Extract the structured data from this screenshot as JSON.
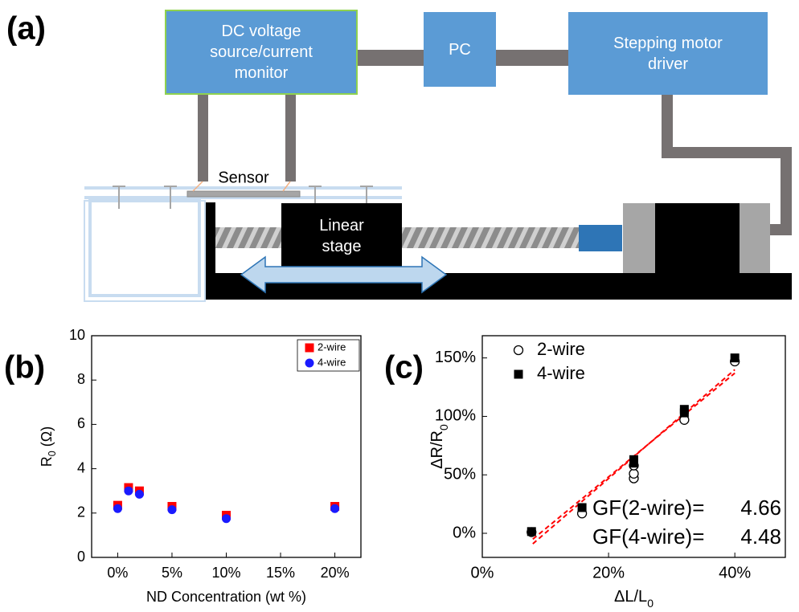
{
  "diagram": {
    "panel_label": "(a)",
    "boxes": [
      "DC voltage source/current monitor",
      "PC",
      "Stepping motor driver"
    ],
    "sensor": "Sensor",
    "stage": "Linear stage"
  },
  "chart_data": [
    {
      "type": "scatter",
      "panel_label": "(b)",
      "x_label": "ND Concentration (wt %)",
      "y_label": {
        "text": "R",
        "sub": "0",
        "rest": "(Ω)"
      },
      "xlim": [
        -2.4,
        22.4
      ],
      "ylim": [
        0,
        10
      ],
      "xticks": [
        {
          "value": 0,
          "label": "0%"
        },
        {
          "value": 5,
          "label": "5%"
        },
        {
          "value": 10,
          "label": "10%"
        },
        {
          "value": 15,
          "label": "15%"
        },
        {
          "value": 20,
          "label": "20%"
        }
      ],
      "yticks": [
        0,
        2,
        4,
        6,
        8,
        10
      ],
      "legend": "upper right",
      "series": [
        {
          "name": "2-wire",
          "color": "#ff0000",
          "marker": "square",
          "x": [
            0,
            1,
            2,
            5,
            10,
            20
          ],
          "values": [
            2.35,
            3.15,
            3.0,
            2.3,
            1.9,
            2.3
          ]
        },
        {
          "name": "4-wire",
          "color": "#1a1aff",
          "marker": "circle",
          "x": [
            0,
            1,
            2,
            5,
            10,
            20
          ],
          "values": [
            2.2,
            3.0,
            2.85,
            2.15,
            1.75,
            2.2
          ]
        }
      ]
    },
    {
      "type": "scatter",
      "panel_label": "(c)",
      "x_label": {
        "text": "ΔL/L",
        "sub": "0"
      },
      "y_label": {
        "text": "ΔR/R",
        "sub": "0"
      },
      "xlim": [
        0,
        48
      ],
      "ylim": [
        -20.6,
        169
      ],
      "xticks": [
        {
          "value": 0,
          "label": "0%"
        },
        {
          "value": 20,
          "label": "20%"
        },
        {
          "value": 40,
          "label": "40%"
        }
      ],
      "yticks": [
        {
          "value": 0,
          "label": "0%"
        },
        {
          "value": 50,
          "label": "50%"
        },
        {
          "value": 100,
          "label": "100%"
        },
        {
          "value": 150,
          "label": "150%"
        }
      ],
      "legend": "upper left",
      "series": [
        {
          "name": "2-wire",
          "color": "#000000",
          "marker": "open-circle",
          "x": [
            7.8,
            15.8,
            24,
            24,
            24,
            32,
            40
          ],
          "values": [
            1,
            17,
            47,
            51,
            58,
            97,
            147
          ]
        },
        {
          "name": "4-wire",
          "color": "#000000",
          "marker": "square",
          "x": [
            7.8,
            15.8,
            24,
            24,
            32,
            32,
            40
          ],
          "values": [
            1.5,
            22,
            60,
            63,
            103,
            106,
            150
          ]
        }
      ],
      "fit_lines": [
        {
          "color": "#ff0000",
          "x": [
            8,
            40
          ],
          "values": [
            -9,
            140
          ]
        },
        {
          "color": "#ff0000",
          "x": [
            8,
            40
          ],
          "values": [
            -5,
            137
          ]
        }
      ],
      "annotations": [
        "GF(2-wire)=",
        "4.66",
        "GF(4-wire)=",
        "4.48"
      ]
    }
  ]
}
